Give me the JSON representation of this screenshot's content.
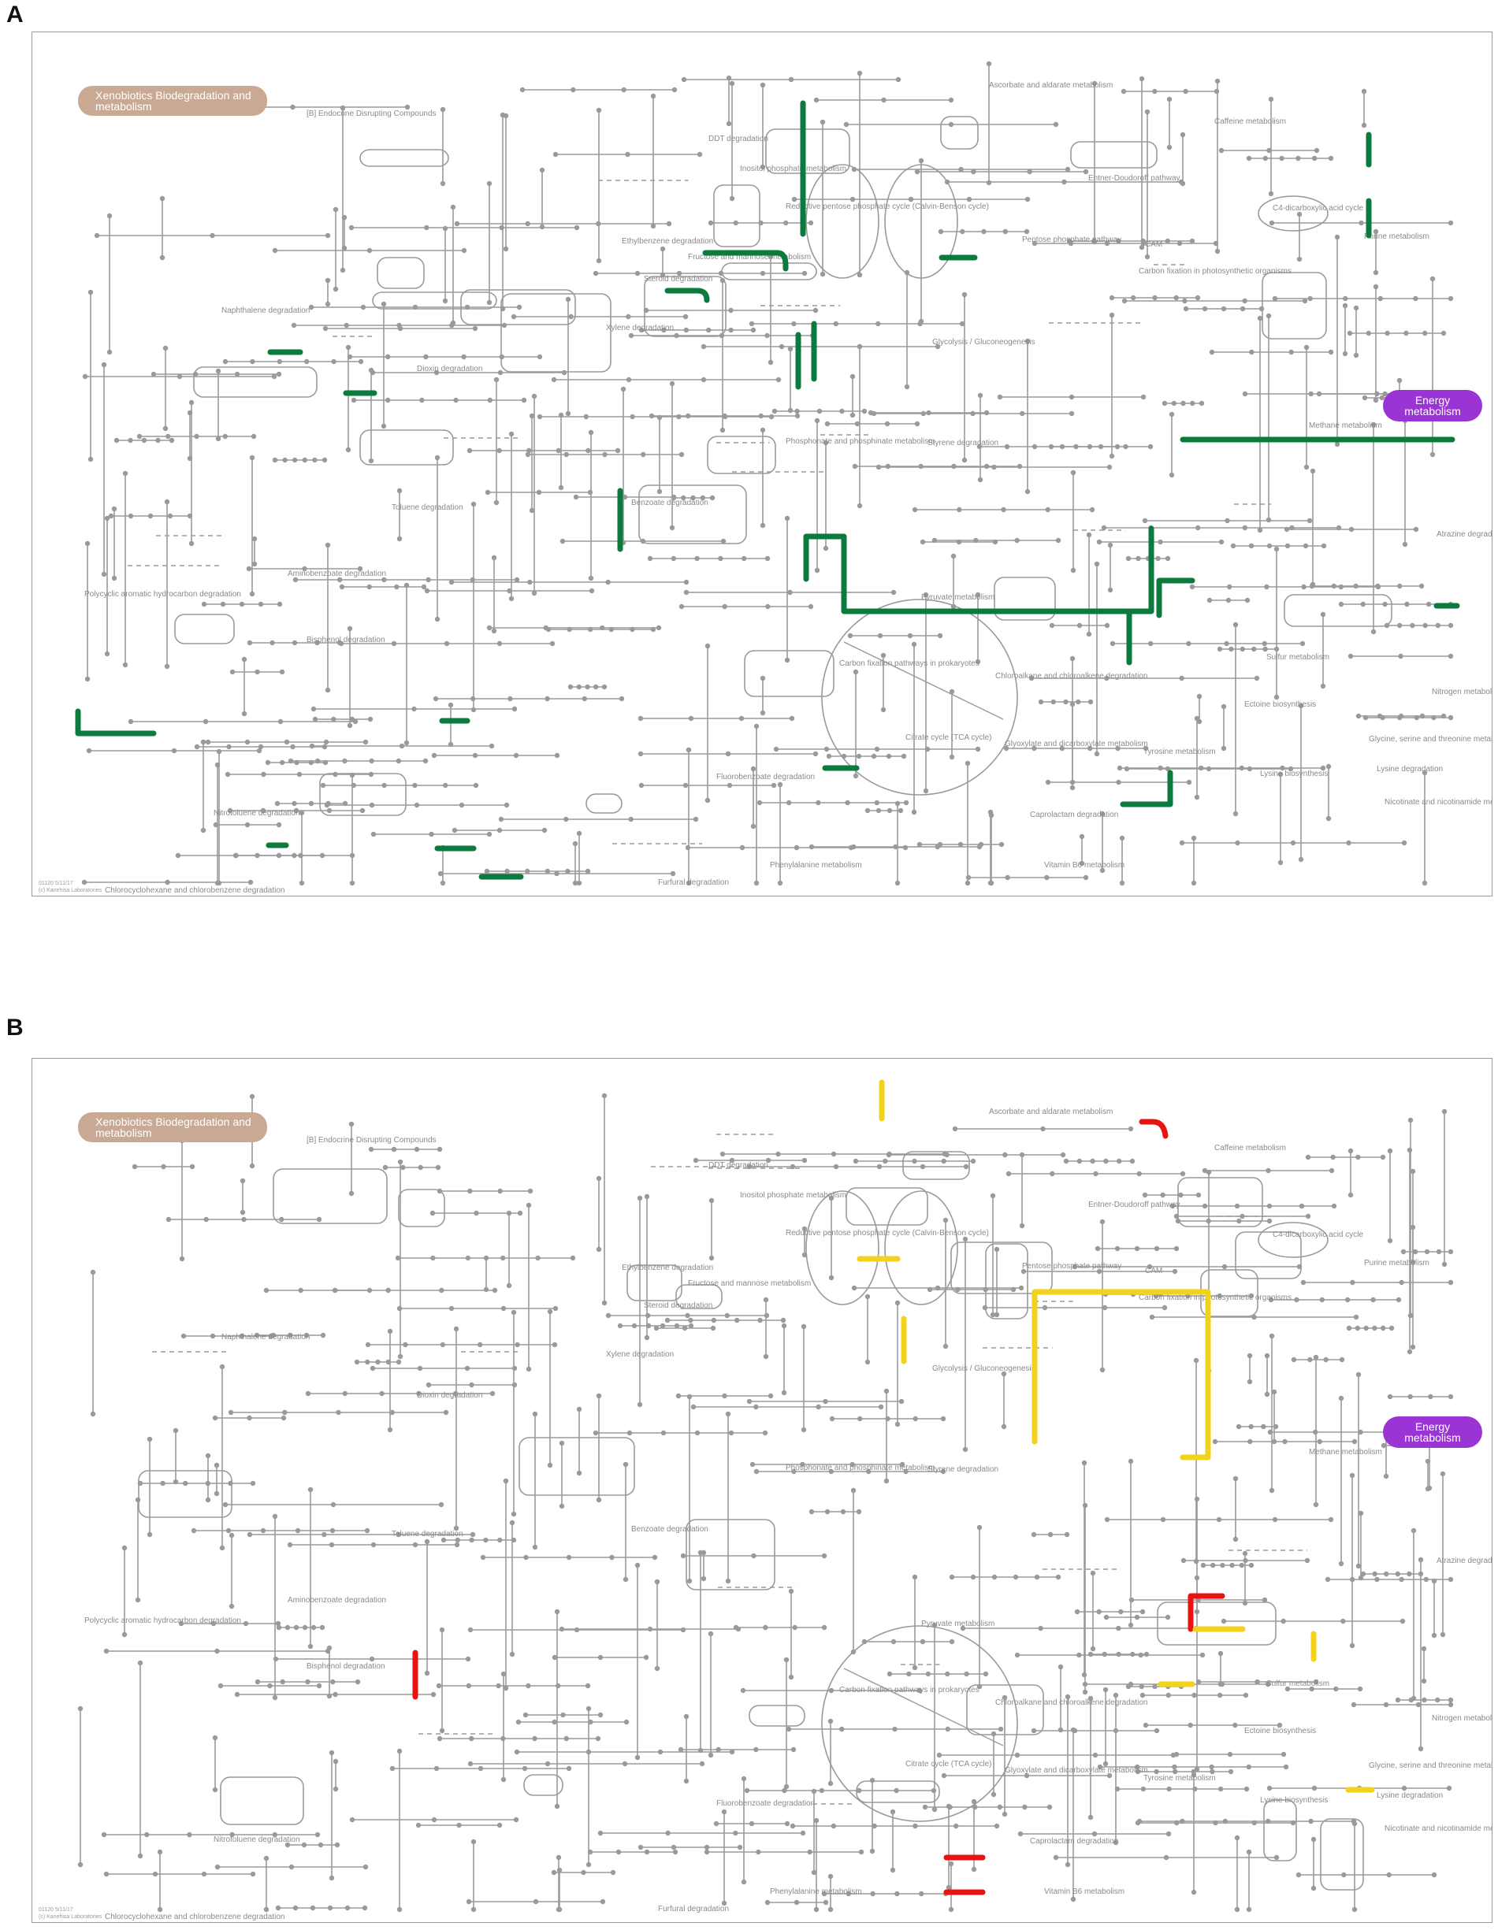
{
  "panels": [
    {
      "letter": "A",
      "category_tags": {
        "xenobiotics": "Xenobiotics Biodegradation and metabolism",
        "energy": "Energy metabolism"
      },
      "highlight_color": "#0b7a3c",
      "footer": [
        "01120 5/11/17",
        "(c) Kanehisa Laboratories"
      ]
    },
    {
      "letter": "B",
      "category_tags": {
        "xenobiotics": "Xenobiotics Biodegradation and metabolism",
        "energy": "Energy metabolism"
      },
      "highlight_colors": [
        "#f2d21b",
        "#e8140f"
      ],
      "footer": [
        "01120 5/11/17",
        "(c) Kanehisa Laboratories"
      ]
    }
  ],
  "map_labels": [
    "[B] Endocrine Disrupting Compounds",
    "DDT degradation",
    "Ascorbate and aldarate metabolism",
    "Caffeine metabolism",
    "Inositol phosphate metabolism",
    "Reductive pentose phosphate cycle (Calvin-Benson cycle)",
    "Entner-Doudoroff pathway",
    "C4-dicarboxylic acid cycle",
    "Ethylbenzene degradation",
    "Fructose and mannose metabolism",
    "Pentose phosphate pathway",
    "CAM",
    "Purine metabolism",
    "Steroid degradation",
    "Carbon fixation in photosynthetic organisms",
    "Naphthalene degradation",
    "Xylene degradation",
    "Glycolysis / Gluconeogenesis",
    "Dioxin degradation",
    "Methane metabolism",
    "Phosphonate and phosphinate metabolism",
    "Styrene degradation",
    "Toluene degradation",
    "Benzoate degradation",
    "Atrazine degradation",
    "Aminobenzoate degradation",
    "Polycyclic aromatic hydrocarbon degradation",
    "Pyruvate metabolism",
    "Bisphenol degradation",
    "Carbon fixation pathways in prokaryotes",
    "Chloroalkane and chloroalkene degradation",
    "Sulfur metabolism",
    "Nitrogen metabolism",
    "Citrate cycle (TCA cycle)",
    "Ectoine biosynthesis",
    "Glyoxylate and dicarboxylate metabolism",
    "Glycine, serine and threonine metabolism",
    "Tyrosine metabolism",
    "Fluorobenzoate degradation",
    "Lysine biosynthesis",
    "Lysine degradation",
    "Nitrotoluene degradation",
    "Caprolactam degradation",
    "Nicotinate and nicotinamide metabolism",
    "Phenylalanine metabolism",
    "Vitamin B6 metabolism",
    "Furfural degradation",
    "Chlorocyclohexane and chlorobenzene degradation"
  ]
}
